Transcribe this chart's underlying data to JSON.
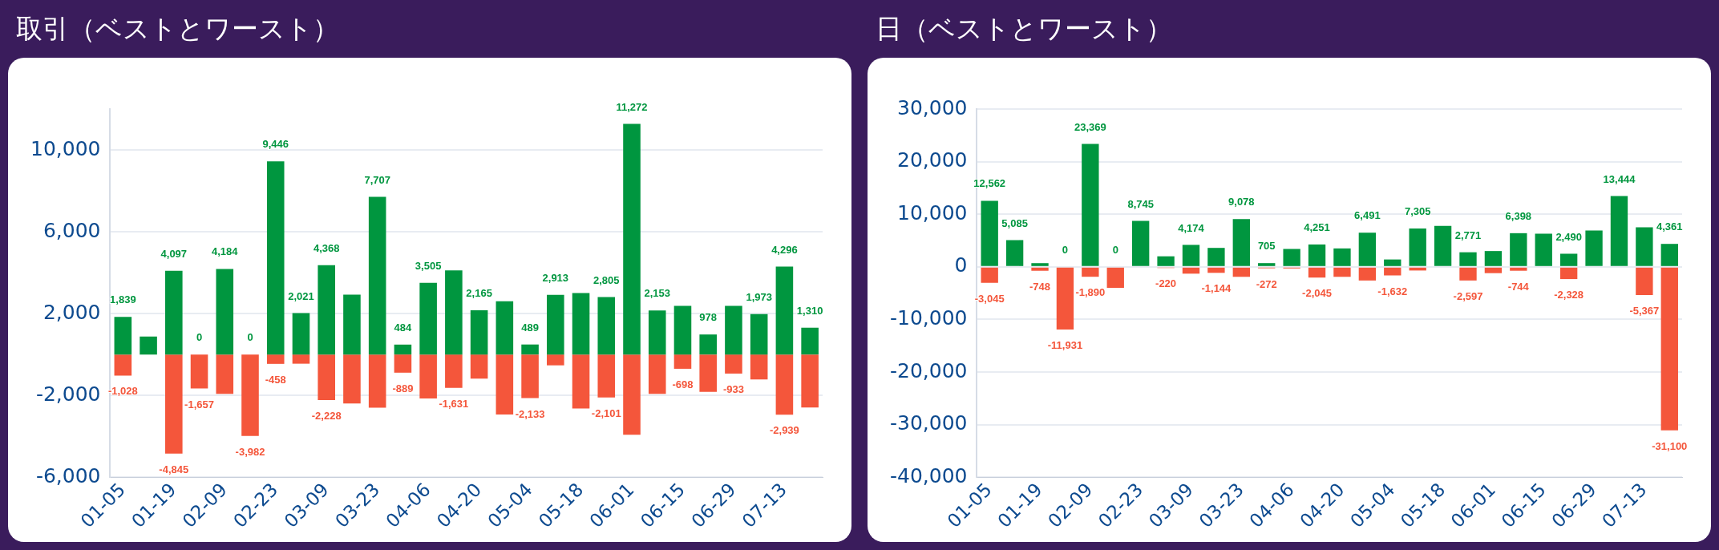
{
  "chart_data": [
    {
      "type": "bar",
      "title": "取引（ベストとワースト）",
      "categories": [
        "01-05",
        null,
        "01-19",
        null,
        "02-09",
        null,
        "02-23",
        null,
        "03-09",
        null,
        "03-23",
        null,
        "04-06",
        null,
        "04-20",
        null,
        "05-04",
        null,
        "05-18",
        null,
        "06-01",
        null,
        "06-15",
        null,
        "06-29",
        null,
        "07-13",
        null
      ],
      "series": [
        {
          "color": "#00963f",
          "values": [
            1839,
            880,
            4097,
            0,
            4184,
            0,
            9446,
            2021,
            4368,
            2930,
            7707,
            484,
            3505,
            4110,
            2165,
            2600,
            489,
            2913,
            3000,
            2805,
            11272,
            2153,
            2380,
            978,
            2380,
            1973,
            4296,
            1310
          ],
          "value_labels": [
            "1,839",
            null,
            "4,097",
            "0",
            "4,184",
            "0",
            "9,446",
            "2,021",
            "4,368",
            null,
            "7,707",
            "484",
            "3,505",
            null,
            "2,165",
            null,
            "489",
            "2,913",
            null,
            "2,805",
            "11,272",
            "2,153",
            null,
            "978",
            null,
            "1,973",
            "4,296",
            "1,310"
          ]
        },
        {
          "color": "#f4563b",
          "values": [
            -1028,
            0,
            -4845,
            -1657,
            -1920,
            -3982,
            -458,
            -450,
            -2228,
            -2390,
            -2600,
            -889,
            -2150,
            -1631,
            -1180,
            -2930,
            -2133,
            -530,
            -2640,
            -2101,
            -3920,
            -1920,
            -698,
            -1830,
            -933,
            -1220,
            -2939,
            -2590
          ],
          "value_labels": [
            "-1,028",
            null,
            "-4,845",
            "-1,657",
            null,
            "-3,982",
            "-458",
            null,
            "-2,228",
            null,
            null,
            "-889",
            null,
            "-1,631",
            null,
            null,
            "-2,133",
            null,
            null,
            "-2,101",
            null,
            null,
            "-698",
            null,
            "-933",
            null,
            "-2,939",
            null
          ]
        }
      ],
      "stacked": true,
      "ylim": [
        -6000,
        12000
      ],
      "yticks": [
        {
          "value": -6000,
          "label": "-6,000"
        },
        {
          "value": -2000,
          "label": "-2,000"
        },
        {
          "value": 2000,
          "label": "2,000"
        },
        {
          "value": 6000,
          "label": "6,000"
        },
        {
          "value": 10000,
          "label": "10,000"
        }
      ],
      "grid": "y",
      "legend": false
    },
    {
      "type": "bar",
      "title": "日（ベストとワースト）",
      "categories": [
        "01-05",
        null,
        "01-19",
        null,
        "02-09",
        null,
        "02-23",
        null,
        "03-09",
        null,
        "03-23",
        null,
        "04-06",
        null,
        "04-20",
        null,
        "05-04",
        null,
        "05-18",
        null,
        "06-01",
        null,
        "06-15",
        null,
        "06-29",
        null,
        "07-13",
        null
      ],
      "series": [
        {
          "color": "#00963f",
          "values": [
            12562,
            5085,
            700,
            0,
            23369,
            0,
            8745,
            2000,
            4174,
            3600,
            9078,
            705,
            3400,
            4251,
            3500,
            6491,
            1400,
            7305,
            7800,
            2771,
            3000,
            6398,
            6300,
            2490,
            6900,
            13444,
            7500,
            4361
          ],
          "value_labels": [
            "12,562",
            "5,085",
            null,
            "0",
            "23,369",
            "0",
            "8,745",
            null,
            "4,174",
            null,
            "9,078",
            "705",
            null,
            "4,251",
            null,
            "6,491",
            null,
            "7,305",
            null,
            "2,771",
            null,
            "6,398",
            null,
            "2,490",
            null,
            "13,444",
            null,
            "4,361"
          ]
        },
        {
          "color": "#f4563b",
          "values": [
            -3045,
            0,
            -748,
            -11931,
            -1890,
            -4000,
            0,
            -220,
            -1300,
            -1144,
            -1900,
            -272,
            -300,
            -2045,
            -1900,
            -2600,
            -1632,
            -700,
            0,
            -2597,
            -1200,
            -744,
            0,
            -2328,
            0,
            0,
            -5367,
            -31100
          ],
          "value_labels": [
            "-3,045",
            null,
            "-748",
            "-11,931",
            "-1,890",
            null,
            null,
            "-220",
            null,
            "-1,144",
            null,
            "-272",
            null,
            "-2,045",
            null,
            null,
            "-1,632",
            null,
            null,
            "-2,597",
            null,
            "-744",
            null,
            "-2,328",
            null,
            null,
            "-5,367",
            "-31,100"
          ]
        }
      ],
      "stacked": true,
      "ylim": [
        -40000,
        30000
      ],
      "yticks": [
        {
          "value": -40000,
          "label": "-40,000"
        },
        {
          "value": -30000,
          "label": "-30,000"
        },
        {
          "value": -20000,
          "label": "-20,000"
        },
        {
          "value": -10000,
          "label": "-10,000"
        },
        {
          "value": 0,
          "label": "0"
        },
        {
          "value": 10000,
          "label": "10,000"
        },
        {
          "value": 20000,
          "label": "20,000"
        },
        {
          "value": 30000,
          "label": "30,000"
        }
      ],
      "grid": "y",
      "legend": false
    }
  ]
}
